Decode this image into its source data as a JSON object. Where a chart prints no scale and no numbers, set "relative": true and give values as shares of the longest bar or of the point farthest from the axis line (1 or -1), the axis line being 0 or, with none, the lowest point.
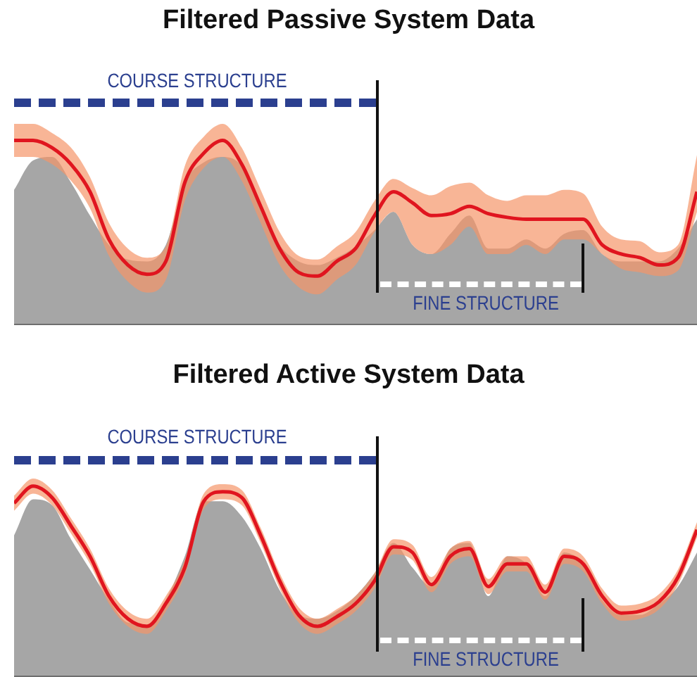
{
  "chart_data": [
    {
      "type": "area",
      "title": "Filtered Passive System Data",
      "relative": true,
      "categories": [
        null,
        null,
        null,
        null,
        null,
        null,
        null,
        null,
        null,
        null,
        null,
        null,
        null,
        null,
        null,
        null,
        null,
        null,
        null,
        null,
        null,
        null,
        null,
        null,
        null,
        null,
        null,
        null,
        null,
        null,
        null,
        null,
        null,
        null,
        null,
        null,
        null
      ],
      "annotations": [
        "COURSE STRUCTURE",
        "FINE STRUCTURE"
      ],
      "series": [
        {
          "type": "area",
          "color": "#a6a6a6",
          "values": [
            0.73,
            0.89,
            0.91,
            0.77,
            0.59,
            0.43,
            0.35,
            0.34,
            0.43,
            0.77,
            0.88,
            0.91,
            0.86,
            0.64,
            0.43,
            0.34,
            0.32,
            0.36,
            0.42,
            0.51,
            0.61,
            0.43,
            0.38,
            0.49,
            0.59,
            0.41,
            0.41,
            0.46,
            0.41,
            0.49,
            0.51,
            0.38,
            0.34,
            0.34,
            0.34,
            0.41,
            0.57
          ]
        },
        {
          "type": "line",
          "color": "#e0151f",
          "values": [
            1,
            1,
            0.96,
            0.87,
            0.72,
            0.46,
            0.32,
            0.27,
            0.34,
            0.77,
            0.93,
            1,
            0.87,
            0.64,
            0.41,
            0.28,
            0.26,
            0.34,
            0.41,
            0.59,
            0.72,
            0.66,
            0.59,
            0.6,
            0.64,
            0.6,
            0.58,
            0.57,
            0.57,
            0.57,
            0.57,
            0.43,
            0.38,
            0.36,
            0.32,
            0.36,
            0.72
          ],
          "upper": [
            1.09,
            1.09,
            1.04,
            0.96,
            0.8,
            0.55,
            0.41,
            0.36,
            0.42,
            0.86,
            1.02,
            1.09,
            0.96,
            0.73,
            0.5,
            0.37,
            0.35,
            0.42,
            0.5,
            0.67,
            0.79,
            0.74,
            0.7,
            0.75,
            0.77,
            0.7,
            0.67,
            0.7,
            0.7,
            0.73,
            0.71,
            0.53,
            0.46,
            0.45,
            0.39,
            0.43,
            0.92
          ],
          "lower": [
            0.91,
            0.91,
            0.87,
            0.78,
            0.63,
            0.37,
            0.23,
            0.17,
            0.24,
            0.67,
            0.85,
            0.91,
            0.78,
            0.55,
            0.32,
            0.2,
            0.16,
            0.24,
            0.32,
            0.5,
            0.61,
            0.43,
            0.38,
            0.43,
            0.53,
            0.38,
            0.38,
            0.43,
            0.38,
            0.46,
            0.46,
            0.38,
            0.3,
            0.28,
            0.26,
            0.29,
            0.61
          ]
        }
      ]
    },
    {
      "type": "area",
      "title": "Filtered Active System Data",
      "relative": true,
      "categories": [
        null,
        null,
        null,
        null,
        null,
        null,
        null,
        null,
        null,
        null,
        null,
        null,
        null,
        null,
        null,
        null,
        null,
        null,
        null,
        null,
        null,
        null,
        null,
        null,
        null,
        null,
        null,
        null,
        null,
        null,
        null,
        null,
        null,
        null,
        null,
        null,
        null
      ],
      "annotations": [
        "COURSE STRUCTURE",
        "FINE STRUCTURE"
      ],
      "series": [
        {
          "type": "area",
          "color": "#a6a6a6",
          "values": [
            0.74,
            0.93,
            0.9,
            0.72,
            0.56,
            0.4,
            0.28,
            0.27,
            0.4,
            0.63,
            0.92,
            0.92,
            0.84,
            0.67,
            0.45,
            0.32,
            0.3,
            0.34,
            0.42,
            0.54,
            0.7,
            0.57,
            0.47,
            0.67,
            0.7,
            0.42,
            0.63,
            0.59,
            0.42,
            0.65,
            0.59,
            0.4,
            0.32,
            0.32,
            0.38,
            0.47,
            0.65
          ]
        },
        {
          "type": "line",
          "color": "#e0151f",
          "values": [
            0.91,
            1,
            0.94,
            0.79,
            0.63,
            0.42,
            0.3,
            0.26,
            0.38,
            0.57,
            0.92,
            0.97,
            0.94,
            0.74,
            0.5,
            0.32,
            0.26,
            0.31,
            0.38,
            0.5,
            0.68,
            0.65,
            0.48,
            0.63,
            0.67,
            0.47,
            0.59,
            0.59,
            0.44,
            0.63,
            0.59,
            0.42,
            0.33,
            0.34,
            0.39,
            0.52,
            0.77
          ],
          "upper": [
            0.95,
            1.04,
            0.98,
            0.83,
            0.67,
            0.46,
            0.34,
            0.3,
            0.42,
            0.61,
            0.96,
            1.01,
            0.98,
            0.78,
            0.54,
            0.36,
            0.3,
            0.35,
            0.42,
            0.54,
            0.72,
            0.69,
            0.52,
            0.67,
            0.71,
            0.51,
            0.63,
            0.63,
            0.48,
            0.67,
            0.63,
            0.46,
            0.37,
            0.38,
            0.43,
            0.56,
            0.81
          ],
          "lower": [
            0.87,
            0.96,
            0.9,
            0.75,
            0.59,
            0.38,
            0.26,
            0.22,
            0.34,
            0.53,
            0.88,
            0.93,
            0.9,
            0.7,
            0.46,
            0.28,
            0.22,
            0.27,
            0.34,
            0.46,
            0.64,
            0.61,
            0.44,
            0.59,
            0.63,
            0.43,
            0.55,
            0.55,
            0.4,
            0.59,
            0.55,
            0.38,
            0.29,
            0.3,
            0.35,
            0.48,
            0.73
          ]
        }
      ]
    }
  ]
}
